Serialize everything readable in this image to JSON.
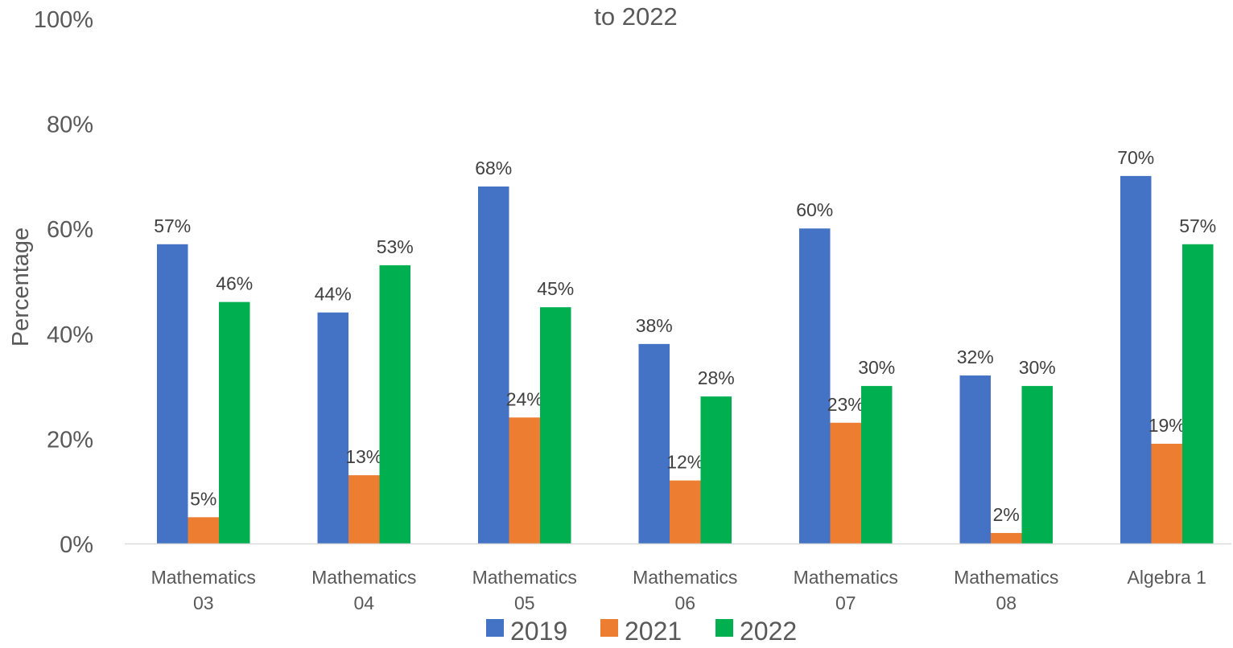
{
  "chart_data": {
    "type": "bar",
    "title": "to 2022",
    "xlabel": "",
    "ylabel": "Percentage",
    "ylim": [
      0,
      100
    ],
    "yticks": [
      "0%",
      "20%",
      "40%",
      "60%",
      "80%",
      "100%"
    ],
    "grid": false,
    "legend_position": "bottom",
    "categories": [
      [
        "Mathematics",
        "03"
      ],
      [
        "Mathematics",
        "04"
      ],
      [
        "Mathematics",
        "05"
      ],
      [
        "Mathematics",
        "06"
      ],
      [
        "Mathematics",
        "07"
      ],
      [
        "Mathematics",
        "08"
      ],
      [
        "Algebra 1"
      ]
    ],
    "series": [
      {
        "name": "2019",
        "color": "#4472C4",
        "values": [
          57,
          44,
          68,
          38,
          60,
          32,
          70
        ],
        "labels": [
          "57%",
          "44%",
          "68%",
          "38%",
          "60%",
          "32%",
          "70%"
        ]
      },
      {
        "name": "2021",
        "color": "#ED7D31",
        "values": [
          5,
          13,
          24,
          12,
          23,
          2,
          19
        ],
        "labels": [
          "5%",
          "13%",
          "24%",
          "12%",
          "23%",
          "2%",
          "19%"
        ]
      },
      {
        "name": "2022",
        "color": "#00B050",
        "values": [
          46,
          53,
          45,
          28,
          30,
          30,
          57
        ],
        "labels": [
          "46%",
          "53%",
          "45%",
          "28%",
          "30%",
          "30%",
          "57%"
        ]
      }
    ]
  }
}
